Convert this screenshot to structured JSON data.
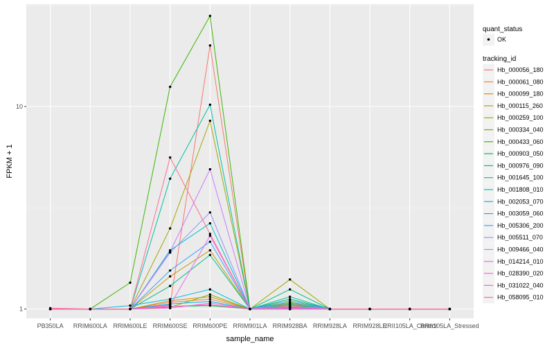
{
  "chart_data": {
    "type": "line",
    "xlabel": "sample_name",
    "ylabel": "FPKM + 1",
    "y_scale": "log10",
    "ylim": [
      0.9,
      32
    ],
    "y_ticks": [
      1,
      10
    ],
    "y_tick_labels": [
      "1",
      "10"
    ],
    "grid": true,
    "background": "#ebebeb",
    "categories": [
      "PB350LA",
      "RRIM600LA",
      "RRIM600LE",
      "RRIM600SE",
      "RRIM600PE",
      "RRIM901LA",
      "RRIM928BA",
      "RRIM928LA",
      "RRIM928LE",
      "RRII105LA_Control",
      "RRII105LA_Stressed"
    ],
    "x_tick_labels": [
      "PB350LA",
      "RRIM600LA",
      "RRIM600LE",
      "RRIM600SE",
      "RRIM600PE",
      "RRIM901LA",
      "RRIM928BA",
      "RRIM928LA",
      "RRIM928LE",
      "RRII105LA_Control",
      "RRII105LA_Stressed"
    ],
    "legend_position": "right",
    "legend_shape": {
      "title": "quant_status",
      "entries": [
        "OK"
      ]
    },
    "legend_color": {
      "title": "tracking_id"
    },
    "series": [
      {
        "name": "Hb_000056_180",
        "color": "#F8766D",
        "values": [
          1,
          1,
          1,
          1.05,
          20,
          1,
          1,
          1,
          1,
          1,
          1
        ]
      },
      {
        "name": "Hb_000061_080",
        "color": "#EA8331",
        "values": [
          1,
          1,
          1,
          1.08,
          1.12,
          1,
          1.02,
          1,
          1,
          1,
          1
        ]
      },
      {
        "name": "Hb_000099_180",
        "color": "#D89000",
        "values": [
          1,
          1,
          1,
          1.1,
          1.15,
          1,
          1.04,
          1,
          1,
          1,
          1
        ]
      },
      {
        "name": "Hb_000115_260",
        "color": "#C09B00",
        "values": [
          1,
          1,
          1,
          1.45,
          1.95,
          1,
          1.03,
          1,
          1,
          1,
          1
        ]
      },
      {
        "name": "Hb_000259_100",
        "color": "#A3A500",
        "values": [
          1,
          1,
          1,
          2.5,
          8.5,
          1,
          1.4,
          1,
          1,
          1,
          1
        ]
      },
      {
        "name": "Hb_000334_040",
        "color": "#7CAE00",
        "values": [
          1,
          1,
          1,
          1.02,
          1.18,
          1,
          1.06,
          1,
          1,
          1,
          1
        ]
      },
      {
        "name": "Hb_000433_060",
        "color": "#39B600",
        "values": [
          1,
          1,
          1.35,
          12.5,
          28,
          1,
          1.08,
          1,
          1,
          1,
          1
        ]
      },
      {
        "name": "Hb_000903_050",
        "color": "#00BB4E",
        "values": [
          1,
          1,
          1,
          1.03,
          1.04,
          1,
          1.12,
          1,
          1,
          1,
          1
        ]
      },
      {
        "name": "Hb_000976_090",
        "color": "#00BF7D",
        "values": [
          1,
          1,
          1,
          1.3,
          1.85,
          1,
          1.25,
          1,
          1,
          1,
          1
        ]
      },
      {
        "name": "Hb_001645_100",
        "color": "#00C1A3",
        "values": [
          1,
          1,
          1,
          4.4,
          10.2,
          1,
          1.15,
          1,
          1,
          1,
          1
        ]
      },
      {
        "name": "Hb_001808_010",
        "color": "#00BFC4",
        "values": [
          1,
          1,
          1,
          1.95,
          2.65,
          1,
          1.05,
          1,
          1,
          1,
          1
        ]
      },
      {
        "name": "Hb_002053_070",
        "color": "#00BAE0",
        "values": [
          1,
          1,
          1.04,
          1.12,
          1.25,
          1,
          1.02,
          1,
          1,
          1,
          1
        ]
      },
      {
        "name": "Hb_003059_060",
        "color": "#00B0F6",
        "values": [
          1,
          1,
          1,
          1.06,
          1.09,
          1,
          1.01,
          1,
          1,
          1,
          1
        ]
      },
      {
        "name": "Hb_005306_200",
        "color": "#35A2FF",
        "values": [
          1,
          1,
          1,
          1.55,
          2.15,
          1,
          1.1,
          1,
          1,
          1,
          1
        ]
      },
      {
        "name": "Hb_005511_070",
        "color": "#9590FF",
        "values": [
          1,
          1,
          1,
          1.9,
          3.0,
          1,
          1.07,
          1,
          1,
          1,
          1
        ]
      },
      {
        "name": "Hb_009466_040",
        "color": "#C77CFF",
        "values": [
          1,
          1,
          1,
          1.92,
          4.9,
          1,
          1.03,
          1,
          1,
          1,
          1
        ]
      },
      {
        "name": "Hb_014214_010",
        "color": "#E76BF3",
        "values": [
          1,
          1,
          1,
          1.04,
          2.3,
          1,
          1.01,
          1,
          1,
          1,
          1
        ]
      },
      {
        "name": "Hb_028390_020",
        "color": "#FA62DB",
        "values": [
          1,
          1,
          1,
          1.01,
          1.07,
          1,
          1,
          1,
          1,
          1,
          1
        ]
      },
      {
        "name": "Hb_031022_040",
        "color": "#FF62BC",
        "values": [
          1,
          1,
          1,
          1.03,
          1.05,
          1,
          1,
          1,
          1,
          1,
          1
        ]
      },
      {
        "name": "Hb_058095_010",
        "color": "#FF6C91",
        "values": [
          1.01,
          1,
          1,
          5.6,
          2.35,
          1,
          1,
          1,
          1,
          1,
          1
        ]
      }
    ]
  }
}
